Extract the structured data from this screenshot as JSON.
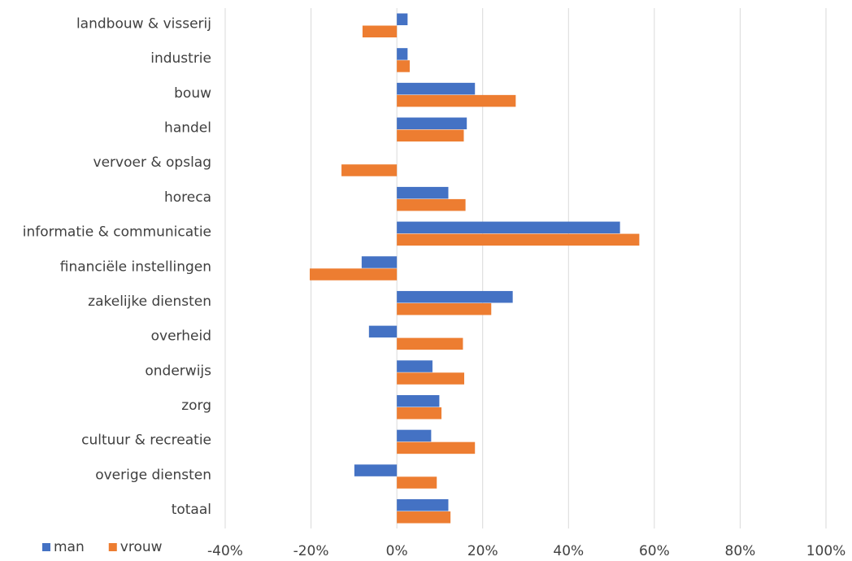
{
  "chart_data": {
    "type": "hbar",
    "categories": [
      "landbouw & visserij",
      "industrie",
      "bouw",
      "handel",
      "vervoer & opslag",
      "horeca",
      "informatie & communicatie",
      "financiële instellingen",
      "zakelijke diensten",
      "overheid",
      "onderwijs",
      "zorg",
      "cultuur & recreatie",
      "overige diensten",
      "totaal"
    ],
    "series": [
      {
        "name": "man",
        "color": "#4472c4",
        "values": [
          2.5,
          2.5,
          18.2,
          16.3,
          0,
          12,
          52,
          -8.2,
          27,
          -6.5,
          8.3,
          9.9,
          8,
          -9.9,
          12
        ]
      },
      {
        "name": "vrouw",
        "color": "#ed7d31",
        "values": [
          -8,
          3,
          27.7,
          15.6,
          -12.9,
          16,
          56.5,
          -20.3,
          22,
          15.4,
          15.7,
          10.4,
          18.2,
          9.3,
          12.5
        ]
      }
    ],
    "xlim": [
      -40,
      100
    ],
    "xticks": [
      {
        "value": -40,
        "label": "-40%"
      },
      {
        "value": -20,
        "label": "-20%"
      },
      {
        "value": 0,
        "label": "0%"
      },
      {
        "value": 20,
        "label": "20%"
      },
      {
        "value": 40,
        "label": "40%"
      },
      {
        "value": 60,
        "label": "60%"
      },
      {
        "value": 80,
        "label": "80%"
      },
      {
        "value": 100,
        "label": "100%"
      }
    ],
    "grid": true
  }
}
